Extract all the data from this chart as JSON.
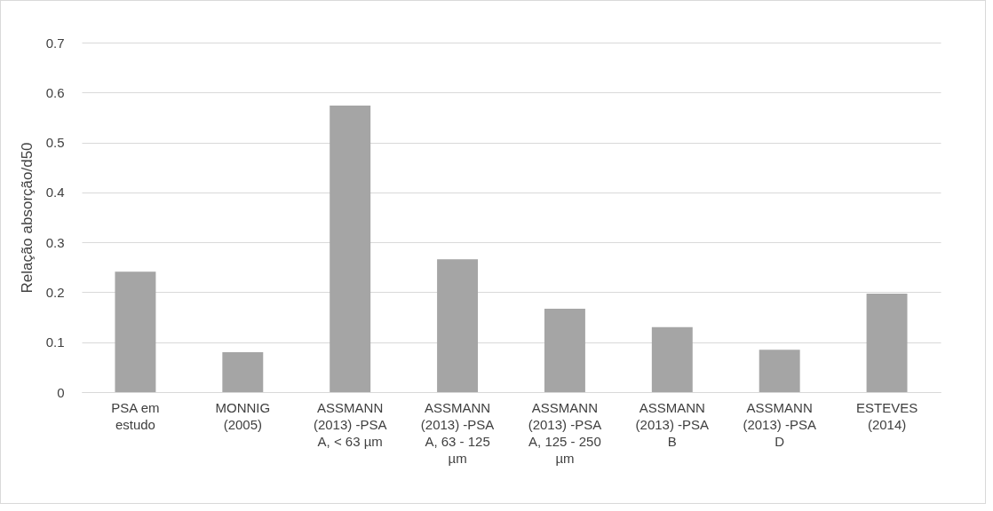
{
  "chart_data": {
    "type": "bar",
    "ylabel": "Relação absorção/d50",
    "categories": [
      "PSA em estudo",
      "MONNIG (2005)",
      "ASSMANN (2013) -PSA A, < 63 µm",
      "ASSMANN (2013) -PSA A, 63 - 125 µm",
      "ASSMANN (2013) -PSA A, 125 - 250 µm",
      "ASSMANN (2013) -PSA B",
      "ASSMANN (2013) -PSA D",
      "ESTEVES (2014)"
    ],
    "values": [
      0.241,
      0.08,
      0.574,
      0.266,
      0.167,
      0.13,
      0.085,
      0.197
    ],
    "color": "#a5a5a5",
    "ylim": [
      0,
      0.7
    ],
    "yticks": [
      0,
      0.1,
      0.2,
      0.3,
      0.4,
      0.5,
      0.6,
      0.7
    ],
    "grid": "y"
  }
}
